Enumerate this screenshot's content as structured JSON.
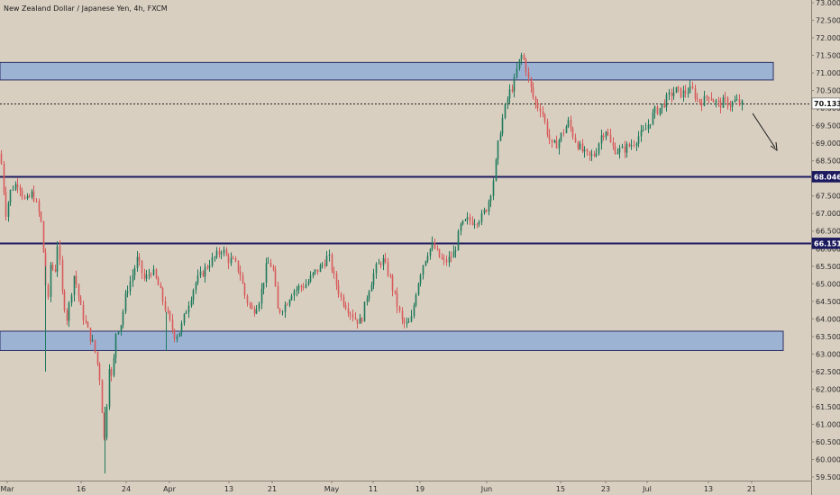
{
  "chart_data": {
    "type": "candlestick",
    "title": "New Zealand Dollar / Japanese Yen, 4h, FXCM",
    "ylim": [
      59.5,
      73.0
    ],
    "y_ticks": [
      "73.000",
      "72.500",
      "72.000",
      "71.500",
      "71.000",
      "70.500",
      "70.000",
      "69.500",
      "69.000",
      "68.500",
      "68.000",
      "67.500",
      "67.000",
      "66.500",
      "66.000",
      "65.500",
      "65.000",
      "64.500",
      "64.000",
      "63.500",
      "63.000",
      "62.500",
      "62.000",
      "61.500",
      "61.000",
      "60.500",
      "60.000",
      "59.500"
    ],
    "x_ticks": [
      "Mar",
      "16",
      "24",
      "Apr",
      "13",
      "21",
      "May",
      "11",
      "19",
      "Jun",
      "15",
      "23",
      "Jul",
      "13",
      "21"
    ],
    "price_path": [
      [
        0,
        68.7
      ],
      [
        6,
        67.0
      ],
      [
        12,
        67.7
      ],
      [
        20,
        67.9
      ],
      [
        28,
        67.3
      ],
      [
        36,
        67.6
      ],
      [
        45,
        66.8
      ],
      [
        50,
        65.2
      ],
      [
        52,
        64.1
      ],
      [
        56,
        65.7
      ],
      [
        60,
        65.2
      ],
      [
        64,
        66.3
      ],
      [
        68,
        64.8
      ],
      [
        74,
        64.0
      ],
      [
        82,
        65.3
      ],
      [
        90,
        64.2
      ],
      [
        98,
        63.6
      ],
      [
        104,
        63.2
      ],
      [
        110,
        62.4
      ],
      [
        114,
        61.0
      ],
      [
        116,
        60.4
      ],
      [
        120,
        62.8
      ],
      [
        124,
        62.2
      ],
      [
        128,
        63.6
      ],
      [
        134,
        63.9
      ],
      [
        140,
        64.8
      ],
      [
        146,
        65.2
      ],
      [
        152,
        65.7
      ],
      [
        160,
        65.1
      ],
      [
        168,
        65.4
      ],
      [
        176,
        64.9
      ],
      [
        182,
        64.4
      ],
      [
        188,
        63.9
      ],
      [
        194,
        63.5
      ],
      [
        200,
        63.7
      ],
      [
        208,
        64.4
      ],
      [
        216,
        65.0
      ],
      [
        224,
        65.3
      ],
      [
        232,
        65.6
      ],
      [
        240,
        65.8
      ],
      [
        246,
        66.0
      ],
      [
        252,
        65.7
      ],
      [
        260,
        65.6
      ],
      [
        266,
        65.3
      ],
      [
        272,
        64.6
      ],
      [
        280,
        64.2
      ],
      [
        288,
        64.6
      ],
      [
        296,
        65.6
      ],
      [
        302,
        65.5
      ],
      [
        308,
        64.2
      ],
      [
        316,
        64.4
      ],
      [
        324,
        64.8
      ],
      [
        332,
        64.9
      ],
      [
        340,
        65.0
      ],
      [
        348,
        65.3
      ],
      [
        356,
        65.5
      ],
      [
        364,
        65.8
      ],
      [
        370,
        65.2
      ],
      [
        378,
        64.6
      ],
      [
        386,
        64.3
      ],
      [
        394,
        64.0
      ],
      [
        400,
        63.9
      ],
      [
        408,
        64.8
      ],
      [
        416,
        65.4
      ],
      [
        424,
        65.7
      ],
      [
        432,
        65.2
      ],
      [
        438,
        64.6
      ],
      [
        446,
        63.9
      ],
      [
        452,
        63.8
      ],
      [
        456,
        64.0
      ],
      [
        462,
        64.9
      ],
      [
        468,
        65.5
      ],
      [
        474,
        65.9
      ],
      [
        480,
        66.1
      ],
      [
        486,
        65.8
      ],
      [
        492,
        65.6
      ],
      [
        498,
        65.7
      ],
      [
        504,
        65.9
      ],
      [
        510,
        66.6
      ],
      [
        518,
        66.8
      ],
      [
        526,
        66.8
      ],
      [
        534,
        66.9
      ],
      [
        540,
        67.2
      ],
      [
        546,
        67.8
      ],
      [
        550,
        68.5
      ],
      [
        554,
        69.3
      ],
      [
        560,
        70.0
      ],
      [
        564,
        70.4
      ],
      [
        570,
        70.7
      ],
      [
        574,
        71.2
      ],
      [
        578,
        71.5
      ],
      [
        582,
        71.3
      ],
      [
        586,
        70.8
      ],
      [
        590,
        70.4
      ],
      [
        594,
        70.1
      ],
      [
        600,
        70.0
      ],
      [
        606,
        69.4
      ],
      [
        612,
        68.9
      ],
      [
        618,
        69.0
      ],
      [
        624,
        69.3
      ],
      [
        630,
        69.6
      ],
      [
        636,
        69.2
      ],
      [
        642,
        68.9
      ],
      [
        648,
        68.7
      ],
      [
        654,
        68.6
      ],
      [
        660,
        68.7
      ],
      [
        666,
        69.2
      ],
      [
        672,
        69.4
      ],
      [
        678,
        68.9
      ],
      [
        684,
        68.8
      ],
      [
        690,
        68.8
      ],
      [
        696,
        68.9
      ],
      [
        702,
        69.0
      ],
      [
        708,
        69.2
      ],
      [
        714,
        69.3
      ],
      [
        720,
        69.6
      ],
      [
        726,
        69.9
      ],
      [
        732,
        70.0
      ],
      [
        738,
        70.2
      ],
      [
        744,
        70.4
      ],
      [
        750,
        70.5
      ],
      [
        756,
        70.4
      ],
      [
        762,
        70.5
      ],
      [
        768,
        70.5
      ],
      [
        774,
        70.2
      ],
      [
        780,
        70.2
      ],
      [
        786,
        70.4
      ],
      [
        792,
        70.2
      ],
      [
        798,
        70.1
      ],
      [
        804,
        70.2
      ],
      [
        810,
        70.1
      ],
      [
        816,
        70.2
      ],
      [
        822,
        70.1
      ]
    ],
    "zones": [
      {
        "from": 70.8,
        "to": 71.3
      },
      {
        "from": 63.1,
        "to": 63.65
      }
    ],
    "levels": [
      {
        "value": 68.046,
        "label": "68.046",
        "style": "solid"
      },
      {
        "value": 66.151,
        "label": "66.151",
        "style": "solid"
      },
      {
        "value": 70.133,
        "label": "70.133",
        "style": "dotted"
      }
    ],
    "colors": {
      "background": "#d9cfc1",
      "up_candle": "#1f7a5c",
      "down_candle": "#d85a5a",
      "zone_fill": "#9db3d4",
      "zone_stroke": "#2a2f66",
      "level_line": "#1c1a5e",
      "dotted_line": "#222222",
      "tag_dark": "#1c1a5e",
      "tag_light": "#ffffff"
    }
  }
}
